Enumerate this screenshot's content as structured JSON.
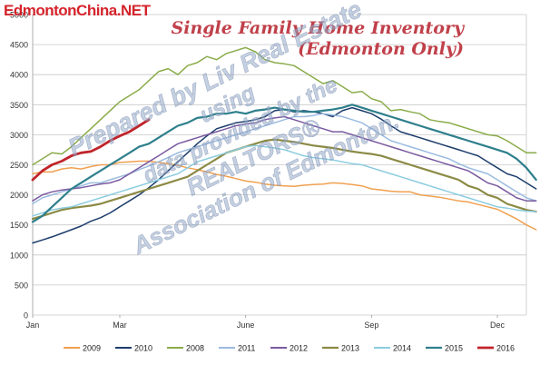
{
  "site": {
    "label": "EdmontonChina.NET"
  },
  "watermark": {
    "line1": "Prepared by Liv Real Estate",
    "line2": "using",
    "line3": "data provided by the",
    "line4": "REALTORS®",
    "line5": "Association of Edmonton."
  },
  "chart_data": {
    "type": "line",
    "title": "Single Family Home Inventory",
    "subtitle": "(Edmonton Only)",
    "xlabel": "",
    "ylabel": "",
    "x_tick_labels": [
      "Jan",
      "Mar",
      "June",
      "Sep",
      "Dec"
    ],
    "x_tick_weeks": [
      0,
      9,
      22,
      35,
      48
    ],
    "x_range": [
      0,
      51
    ],
    "ylim": [
      0,
      5000
    ],
    "y_ticks": [
      0,
      500,
      1000,
      1500,
      2000,
      2500,
      3000,
      3500,
      4000,
      4500,
      5000
    ],
    "grid": true,
    "legend_position": "bottom",
    "series": [
      {
        "name": "2009",
        "color": "#f0a050",
        "width": 1.5,
        "values": [
          2350,
          2380,
          2380,
          2430,
          2450,
          2430,
          2470,
          2500,
          2500,
          2540,
          2550,
          2560,
          2560,
          2540,
          2520,
          2490,
          2450,
          2420,
          2380,
          2340,
          2310,
          2270,
          2230,
          2210,
          2180,
          2160,
          2150,
          2140,
          2160,
          2170,
          2180,
          2200,
          2190,
          2170,
          2150,
          2100,
          2080,
          2060,
          2050,
          2050,
          2000,
          1980,
          1960,
          1930,
          1900,
          1880,
          1840,
          1800,
          1760,
          1680,
          1600,
          1500,
          1420
        ]
      },
      {
        "name": "2010",
        "color": "#1c3d6b",
        "width": 1.5,
        "values": [
          1200,
          1250,
          1300,
          1360,
          1420,
          1480,
          1560,
          1620,
          1700,
          1800,
          1900,
          2000,
          2120,
          2250,
          2400,
          2550,
          2700,
          2850,
          2980,
          3100,
          3150,
          3200,
          3220,
          3250,
          3300,
          3400,
          3420,
          3380,
          3400,
          3380,
          3350,
          3300,
          3400,
          3450,
          3400,
          3350,
          3260,
          3150,
          3050,
          3000,
          2950,
          2900,
          2850,
          2800,
          2750,
          2700,
          2650,
          2550,
          2450,
          2350,
          2300,
          2200,
          2100
        ]
      },
      {
        "name": "2008",
        "color": "#8aac4a",
        "width": 1.5,
        "values": [
          2500,
          2600,
          2700,
          2680,
          2800,
          2950,
          3100,
          3250,
          3400,
          3550,
          3650,
          3750,
          3900,
          4050,
          4100,
          4000,
          4150,
          4200,
          4300,
          4250,
          4350,
          4400,
          4450,
          4380,
          4250,
          4200,
          4180,
          4150,
          4050,
          3950,
          3850,
          3900,
          3800,
          3700,
          3720,
          3600,
          3550,
          3400,
          3420,
          3380,
          3350,
          3250,
          3220,
          3200,
          3150,
          3100,
          3050,
          3000,
          2980,
          2900,
          2800,
          2700,
          2700
        ]
      },
      {
        "name": "2011",
        "color": "#9bbbe0",
        "width": 1.5,
        "values": [
          1850,
          1950,
          2000,
          2050,
          2100,
          2150,
          2200,
          2200,
          2250,
          2300,
          2350,
          2420,
          2480,
          2550,
          2620,
          2700,
          2750,
          2800,
          2850,
          2900,
          2950,
          3000,
          3050,
          3100,
          3150,
          3200,
          3250,
          3300,
          3300,
          3320,
          3350,
          3330,
          3300,
          3250,
          3200,
          3100,
          3000,
          2900,
          2850,
          2800,
          2750,
          2700,
          2650,
          2600,
          2520,
          2450,
          2400,
          2350,
          2250,
          2150,
          2050,
          1950,
          1900
        ]
      },
      {
        "name": "2012",
        "color": "#7a5aa0",
        "width": 1.5,
        "values": [
          1900,
          2000,
          2050,
          2080,
          2100,
          2120,
          2150,
          2180,
          2200,
          2250,
          2350,
          2450,
          2550,
          2650,
          2750,
          2850,
          2900,
          2950,
          3000,
          3050,
          3100,
          3150,
          3180,
          3200,
          3250,
          3280,
          3300,
          3250,
          3200,
          3150,
          3100,
          3050,
          3050,
          3000,
          2950,
          2900,
          2850,
          2800,
          2750,
          2700,
          2650,
          2600,
          2550,
          2500,
          2450,
          2400,
          2300,
          2200,
          2150,
          2050,
          1950,
          1900,
          1900
        ]
      },
      {
        "name": "2013",
        "color": "#8b8a45",
        "width": 2.2,
        "values": [
          1600,
          1650,
          1700,
          1750,
          1780,
          1800,
          1820,
          1850,
          1900,
          1950,
          2000,
          2050,
          2100,
          2150,
          2200,
          2250,
          2300,
          2400,
          2500,
          2600,
          2700,
          2750,
          2800,
          2850,
          2900,
          2920,
          2900,
          2880,
          2850,
          2820,
          2800,
          2780,
          2750,
          2720,
          2700,
          2680,
          2650,
          2600,
          2550,
          2500,
          2450,
          2400,
          2350,
          2300,
          2250,
          2150,
          2100,
          2000,
          1950,
          1850,
          1800,
          1750,
          1720
        ]
      },
      {
        "name": "2014",
        "color": "#8ccce0",
        "width": 1.5,
        "values": [
          1650,
          1700,
          1750,
          1780,
          1800,
          1850,
          1900,
          1950,
          2000,
          2050,
          2100,
          2150,
          2200,
          2250,
          2300,
          2350,
          2450,
          2550,
          2600,
          2650,
          2700,
          2750,
          2800,
          2820,
          2800,
          2780,
          2750,
          2700,
          2650,
          2620,
          2600,
          2580,
          2550,
          2520,
          2500,
          2450,
          2400,
          2350,
          2300,
          2250,
          2200,
          2150,
          2100,
          2050,
          2000,
          1950,
          1900,
          1850,
          1800,
          1780,
          1750,
          1730,
          1720
        ]
      },
      {
        "name": "2015",
        "color": "#2e7f8c",
        "width": 2.2,
        "values": [
          1550,
          1650,
          1800,
          1950,
          2100,
          2200,
          2300,
          2400,
          2500,
          2600,
          2700,
          2800,
          2850,
          2950,
          3050,
          3150,
          3200,
          3280,
          3300,
          3350,
          3350,
          3380,
          3350,
          3400,
          3420,
          3450,
          3420,
          3400,
          3380,
          3380,
          3400,
          3420,
          3450,
          3500,
          3450,
          3400,
          3350,
          3300,
          3250,
          3200,
          3150,
          3100,
          3050,
          3000,
          2950,
          2900,
          2850,
          2800,
          2750,
          2700,
          2600,
          2450,
          2250
        ]
      },
      {
        "name": "2016",
        "color": "#c0242b",
        "width": 2.8,
        "values": [
          2250,
          2400,
          2500,
          2560,
          2650,
          2700,
          2720,
          2800,
          2900,
          2980,
          3050,
          3150,
          3250
        ]
      }
    ]
  }
}
